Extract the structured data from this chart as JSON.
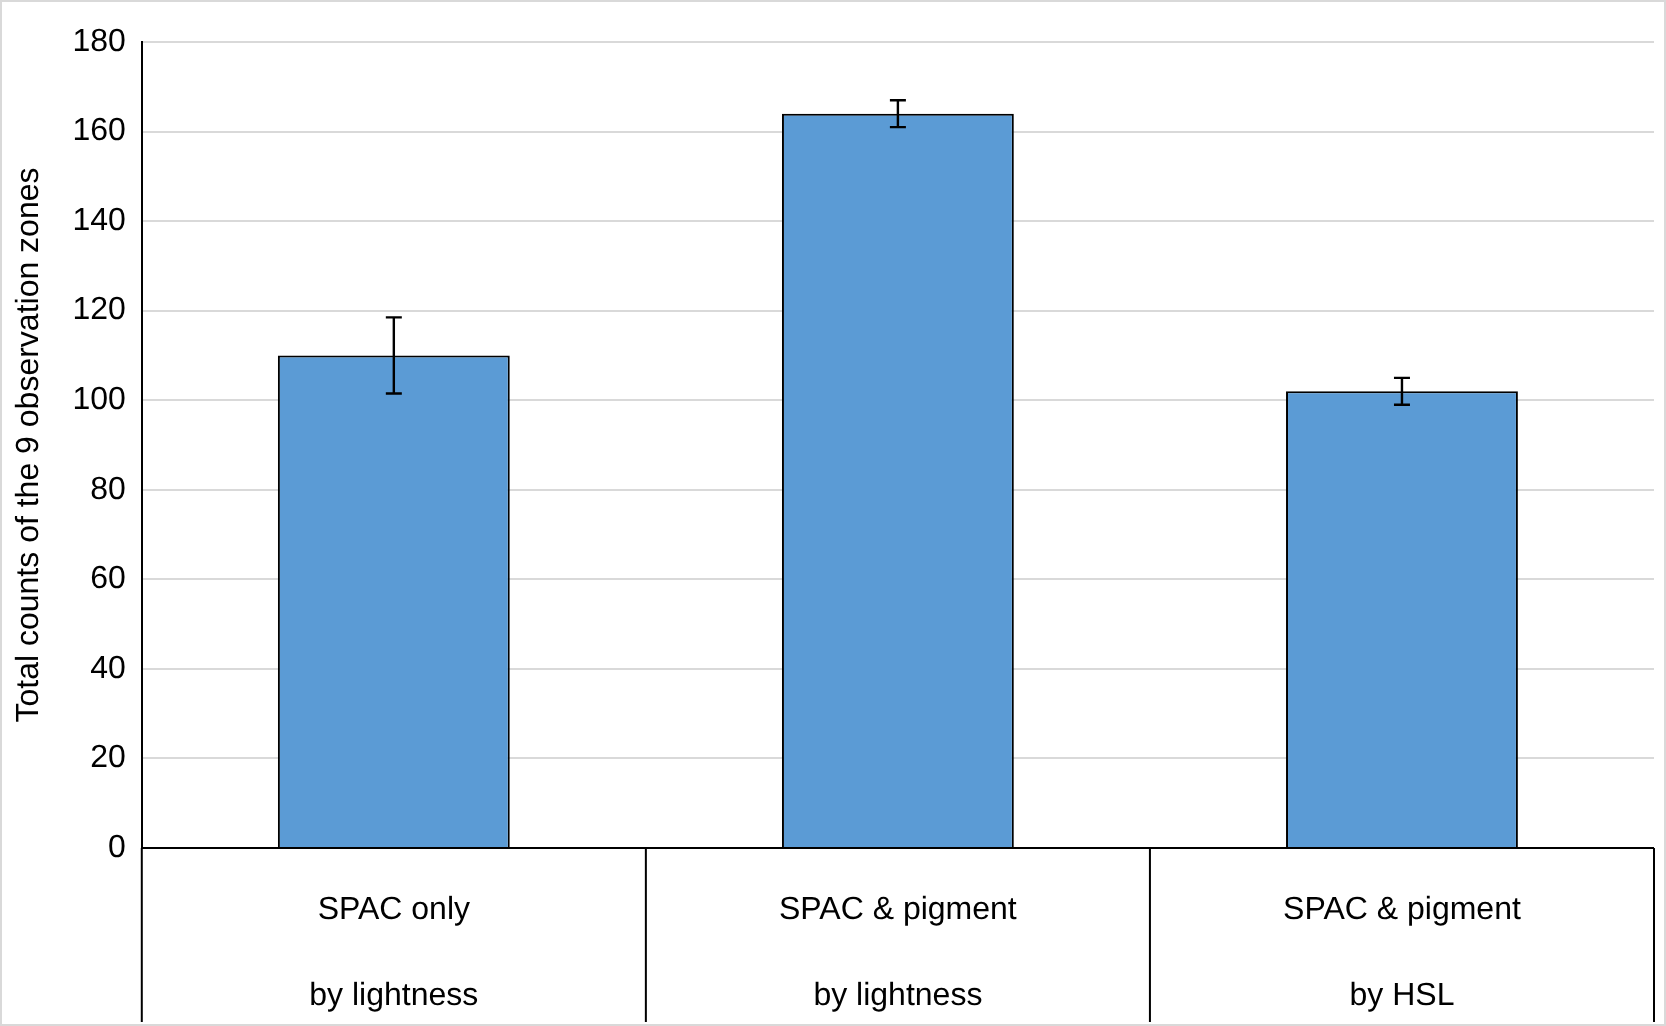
{
  "chart_data": {
    "type": "bar",
    "ylabel": "Total counts of the 9 observation zones",
    "categories": [
      "SPAC only\nby lightness",
      "SPAC & pigment\nby lightness",
      "SPAC & pigment\nby HSL"
    ],
    "values": [
      110,
      164,
      102
    ],
    "errors": [
      8.5,
      3,
      3
    ],
    "color": "#5b9bd5",
    "ylim": [
      0,
      180
    ],
    "yticks": [
      0,
      20,
      40,
      60,
      80,
      100,
      120,
      140,
      160,
      180
    ],
    "grid": "y"
  }
}
